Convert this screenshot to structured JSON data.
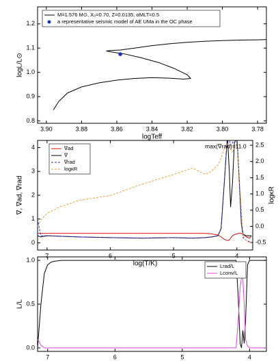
{
  "chart_data": [
    {
      "type": "line",
      "xlabel": "logTeff",
      "ylabel": "logL/L⊙",
      "xlim": [
        3.905,
        3.775
      ],
      "ylim": [
        0.79,
        1.27
      ],
      "xticks": [
        {
          "value": 3.9,
          "label": "3.90"
        },
        3.88,
        3.86,
        3.84,
        3.82,
        {
          "value": 3.8,
          "label": "3.80"
        },
        3.78
      ],
      "yticks": [
        0.8,
        0.9,
        {
          "value": 1.0,
          "label": "1.0"
        },
        1.1,
        1.2
      ],
      "series": [
        {
          "name": "M=1.576 M⊙, X₀=0.70, Z=0.0135, αMLT=0.5",
          "color": "#000000",
          "x": [
            3.896,
            3.893,
            3.888,
            3.88,
            3.87,
            3.86,
            3.85,
            3.84,
            3.83,
            3.822,
            3.818,
            3.82,
            3.827,
            3.836,
            3.846,
            3.855,
            3.862,
            3.866,
            3.864,
            3.858,
            3.85,
            3.84,
            3.83,
            3.82,
            3.81,
            3.8,
            3.79,
            3.78,
            3.775
          ],
          "values": [
            0.845,
            0.88,
            0.915,
            0.94,
            0.957,
            0.968,
            0.975,
            0.978,
            0.976,
            0.972,
            0.975,
            0.99,
            1.015,
            1.04,
            1.06,
            1.075,
            1.083,
            1.088,
            1.09,
            1.092,
            1.1,
            1.11,
            1.118,
            1.124,
            1.128,
            1.131,
            1.133,
            1.134,
            1.135
          ]
        },
        {
          "name": "a representative seismic model of AE UMa in the OC phase",
          "color": "#1f2fb0",
          "marker": true,
          "x": [
            3.858
          ],
          "values": [
            1.075
          ]
        }
      ]
    },
    {
      "type": "line",
      "xlabel": "log(T/K)",
      "ylabel": "∇, ∇ad, ∇rad",
      "y2label": "logκR",
      "annotation": "max(∇rad)=11.0",
      "xlim": [
        7.15,
        3.75
      ],
      "ylim": [
        -0.3,
        4.3
      ],
      "y2lim": [
        -0.73,
        2.65
      ],
      "xticks": [
        7,
        6,
        5,
        4
      ],
      "yticks": [
        0,
        1,
        2,
        3,
        4
      ],
      "y2ticks": [
        -0.5,
        {
          "value": 0.0,
          "label": "0.0"
        },
        0.5,
        {
          "value": 1.0,
          "label": "1.0"
        },
        1.5,
        {
          "value": 2.0,
          "label": "2.0"
        },
        2.5
      ],
      "series": [
        {
          "name": "∇ad",
          "color": "#e01010",
          "x": [
            7.15,
            7.1,
            7.0,
            6.8,
            6.5,
            6.0,
            5.5,
            5.0,
            4.7,
            4.5,
            4.4,
            4.3,
            4.25,
            4.2,
            4.15,
            4.12,
            4.1,
            4.07,
            4.04,
            4.0,
            3.97,
            3.93,
            3.9,
            3.85,
            3.8,
            3.77
          ],
          "values": [
            0.4,
            0.4,
            0.4,
            0.4,
            0.4,
            0.4,
            0.4,
            0.4,
            0.4,
            0.4,
            0.38,
            0.33,
            0.25,
            0.15,
            0.1,
            0.12,
            0.2,
            0.3,
            0.35,
            0.38,
            0.4,
            0.4,
            0.35,
            0.25,
            0.2,
            0.3
          ]
        },
        {
          "name": "∇",
          "color": "#000000",
          "x": [
            7.15,
            7.1,
            7.0,
            6.8,
            6.5,
            6.0,
            5.5,
            5.0,
            4.7,
            4.5,
            4.4,
            4.3,
            4.25,
            4.2,
            4.15,
            4.12,
            4.1,
            4.07,
            4.04,
            4.0,
            3.97,
            3.93,
            3.9,
            3.85,
            3.8,
            3.77
          ],
          "values": [
            0.3,
            0.25,
            0.3,
            0.28,
            0.25,
            0.22,
            0.2,
            0.22,
            0.2,
            0.22,
            0.25,
            0.3,
            0.6,
            2.5,
            4.5,
            3.0,
            1.5,
            2.5,
            4.2,
            4.4,
            3.0,
            0.8,
            0.35,
            0.3,
            0.3,
            0.3
          ]
        },
        {
          "name": "∇rad",
          "color": "#2a2ad0",
          "dash": true,
          "x": [
            7.15,
            7.1,
            7.0,
            6.8,
            6.5,
            6.0,
            5.5,
            5.0,
            4.7,
            4.5,
            4.4,
            4.3,
            4.25,
            4.2,
            4.15,
            4.12,
            4.1,
            4.07,
            4.04,
            4.0,
            3.97,
            3.93,
            3.9,
            3.85,
            3.8,
            3.77
          ],
          "values": [
            1.0,
            0.3,
            0.3,
            0.28,
            0.25,
            0.22,
            0.2,
            0.22,
            0.2,
            0.22,
            0.25,
            0.3,
            0.6,
            2.5,
            4.5,
            4.3,
            4.1,
            4.2,
            4.3,
            4.4,
            3.0,
            0.8,
            0.2,
            0.1,
            0.05,
            0.05
          ]
        },
        {
          "name": "logκR",
          "color": "#f0a040",
          "dash": true,
          "axis": "y2",
          "x": [
            7.15,
            7.1,
            7.0,
            6.8,
            6.5,
            6.0,
            5.5,
            5.0,
            4.7,
            4.5,
            4.4,
            4.3,
            4.25,
            4.2,
            4.15,
            4.12,
            4.1,
            4.07,
            4.04,
            4.0,
            3.97,
            3.93,
            3.9,
            3.85,
            3.8,
            3.77
          ],
          "values": [
            0.0,
            0.2,
            0.4,
            0.6,
            0.8,
            0.95,
            1.3,
            1.6,
            1.8,
            1.6,
            1.7,
            1.9,
            2.1,
            2.4,
            2.55,
            2.5,
            2.4,
            2.3,
            2.4,
            2.5,
            1.8,
            0.5,
            -0.3,
            -0.45,
            -0.5,
            -0.5
          ]
        }
      ]
    },
    {
      "type": "line",
      "xlabel": "log(T/K)",
      "ylabel": "L/L",
      "xlim": [
        7.15,
        3.75
      ],
      "ylim": [
        -0.04,
        1.04
      ],
      "xticks": [
        7,
        6,
        5,
        4
      ],
      "yticks": [
        {
          "value": 0.0,
          "label": "0.0"
        },
        0.5,
        {
          "value": 1.0,
          "label": "1.0"
        }
      ],
      "series": [
        {
          "name": "Lrad/L",
          "color": "#000000",
          "x": [
            7.15,
            7.1,
            7.05,
            7.0,
            6.95,
            6.9,
            6.8,
            6.0,
            5.0,
            4.3,
            4.2,
            4.17,
            4.14,
            4.12,
            4.1,
            4.08,
            4.06,
            4.03,
            4.0,
            3.95,
            3.85,
            3.75
          ],
          "values": [
            0.0,
            0.5,
            0.85,
            0.95,
            0.98,
            0.99,
            1.0,
            1.0,
            1.0,
            1.0,
            1.0,
            0.6,
            0.05,
            0.0,
            0.2,
            0.05,
            0.3,
            0.95,
            1.0,
            1.0,
            1.0,
            1.0
          ]
        },
        {
          "name": "Lconv/L",
          "color": "#e040e0",
          "x": [
            7.15,
            7.1,
            7.05,
            7.0,
            6.95,
            6.9,
            6.8,
            6.0,
            5.0,
            4.3,
            4.2,
            4.17,
            4.14,
            4.12,
            4.1,
            4.08,
            4.06,
            4.03,
            4.0,
            3.95,
            3.85,
            3.75
          ],
          "values": [
            0.1,
            0.03,
            0.0,
            0.0,
            0.0,
            0.0,
            0.0,
            0.0,
            0.0,
            0.0,
            0.0,
            0.3,
            0.7,
            0.8,
            0.8,
            0.5,
            0.1,
            0.02,
            0.0,
            0.0,
            0.0,
            0.0
          ]
        }
      ]
    }
  ]
}
